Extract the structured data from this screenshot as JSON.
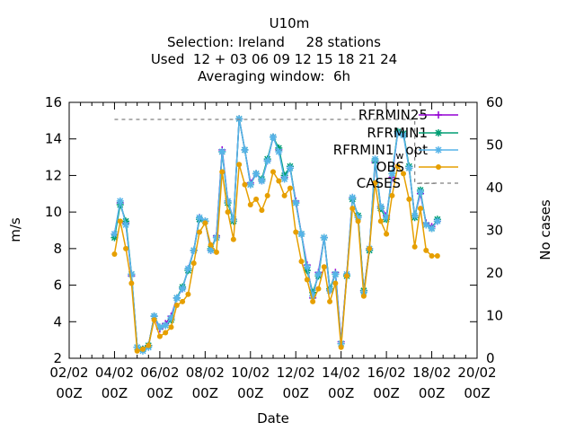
{
  "header": {
    "line1": "U10m",
    "line2": "Selection: Ireland     28 stations",
    "line3": "Used  12 + 03 06 09 12 15 18 21 24",
    "line4": "Averaging window:  6h"
  },
  "chart_data": {
    "type": "line",
    "title": "U10m",
    "xlabel": "Date",
    "ylabel": "m/s",
    "y2label": "No cases",
    "ylim": [
      2,
      16
    ],
    "y2lim": [
      0,
      60
    ],
    "yticks": [
      "2",
      "4",
      "6",
      "8",
      "10",
      "12",
      "14",
      "16"
    ],
    "y2ticks": [
      "0",
      "10",
      "20",
      "30",
      "40",
      "50",
      "60"
    ],
    "xlim_days": [
      0,
      18
    ],
    "xticks": [
      {
        "d": 0,
        "label": [
          "02/02",
          "00Z"
        ]
      },
      {
        "d": 2,
        "label": [
          "04/02",
          "00Z"
        ]
      },
      {
        "d": 4,
        "label": [
          "06/02",
          "00Z"
        ]
      },
      {
        "d": 6,
        "label": [
          "08/02",
          "00Z"
        ]
      },
      {
        "d": 8,
        "label": [
          "10/02",
          "00Z"
        ]
      },
      {
        "d": 10,
        "label": [
          "12/02",
          "00Z"
        ]
      },
      {
        "d": 12,
        "label": [
          "14/02",
          "00Z"
        ]
      },
      {
        "d": 14,
        "label": [
          "16/02",
          "00Z"
        ]
      },
      {
        "d": 16,
        "label": [
          "18/02",
          "00Z"
        ]
      },
      {
        "d": 18,
        "label": [
          "20/02",
          "00Z"
        ]
      }
    ],
    "x": [
      2.0,
      2.25,
      2.5,
      2.75,
      3.0,
      3.25,
      3.5,
      3.75,
      4.0,
      4.25,
      4.5,
      4.75,
      5.0,
      5.25,
      5.5,
      5.75,
      6.0,
      6.25,
      6.5,
      6.75,
      7.0,
      7.25,
      7.5,
      7.75,
      8.0,
      8.25,
      8.5,
      8.75,
      9.0,
      9.25,
      9.5,
      9.75,
      10.0,
      10.25,
      10.5,
      10.75,
      11.0,
      11.25,
      11.5,
      11.75,
      12.0,
      12.25,
      12.5,
      12.75,
      13.0,
      13.25,
      13.5,
      13.75,
      14.0,
      14.25,
      14.5,
      14.75,
      15.0,
      15.25,
      15.5,
      15.75,
      16.0,
      16.25
    ],
    "series": [
      {
        "name": "RFRMIN25",
        "color": "#9400d3",
        "marker": "plus",
        "values": [
          8.8,
          10.5,
          9.4,
          6.5,
          2.6,
          2.5,
          2.7,
          4.3,
          3.6,
          3.9,
          4.3,
          5.3,
          5.8,
          6.9,
          7.9,
          9.7,
          9.5,
          7.9,
          8.7,
          13.4,
          10.6,
          9.6,
          15.1,
          13.4,
          11.6,
          12.1,
          11.7,
          12.8,
          14.1,
          13.4,
          11.9,
          12.4,
          10.6,
          8.8,
          7.1,
          5.3,
          6.7,
          8.6,
          5.7,
          6.7,
          2.9,
          6.6,
          10.8,
          9.7,
          5.7,
          8.0,
          12.7,
          10.3,
          9.8,
          11.9,
          14.4,
          14.3,
          12.4,
          9.8,
          11.0,
          9.4,
          9.2,
          9.5
        ]
      },
      {
        "name": "RFRMIN1",
        "color": "#009e73",
        "marker": "star",
        "values": [
          8.6,
          10.4,
          9.5,
          6.6,
          2.6,
          2.5,
          2.7,
          4.3,
          3.7,
          3.8,
          4.1,
          5.3,
          5.9,
          6.8,
          7.9,
          9.6,
          9.5,
          8.0,
          8.6,
          13.3,
          10.5,
          9.5,
          15.1,
          13.4,
          11.5,
          12.1,
          11.8,
          12.9,
          14.1,
          13.5,
          12.0,
          12.5,
          10.5,
          8.8,
          6.8,
          5.6,
          6.5,
          8.6,
          5.8,
          6.6,
          2.8,
          6.5,
          10.7,
          9.8,
          5.7,
          7.9,
          12.8,
          10.2,
          9.6,
          12.1,
          14.4,
          14.3,
          12.5,
          9.7,
          11.2,
          9.3,
          9.1,
          9.6
        ]
      },
      {
        "name": "RFRMIN1 opt",
        "color": "#56b4e9",
        "marker": "star",
        "values": [
          8.8,
          10.6,
          9.3,
          6.6,
          2.6,
          2.4,
          2.6,
          4.3,
          3.7,
          3.8,
          4.2,
          5.3,
          5.8,
          6.9,
          7.9,
          9.7,
          9.5,
          7.9,
          8.6,
          13.3,
          10.6,
          9.6,
          15.1,
          13.4,
          11.5,
          12.1,
          11.7,
          12.8,
          14.1,
          13.3,
          11.8,
          12.4,
          10.5,
          8.8,
          7.0,
          5.4,
          6.6,
          8.6,
          5.7,
          6.6,
          2.8,
          6.6,
          10.8,
          9.7,
          5.6,
          8.0,
          12.9,
          10.3,
          9.7,
          12.1,
          14.3,
          14.2,
          12.4,
          9.8,
          11.1,
          9.3,
          9.1,
          9.5
        ]
      },
      {
        "name": "OBS",
        "color": "#e69f00",
        "marker": "circle",
        "values": [
          7.7,
          9.5,
          8.0,
          6.1,
          2.4,
          2.5,
          2.7,
          4.1,
          3.2,
          3.4,
          3.7,
          4.9,
          5.1,
          5.5,
          7.2,
          8.9,
          9.4,
          8.2,
          7.8,
          12.2,
          10.0,
          8.5,
          12.6,
          11.5,
          10.4,
          10.7,
          10.1,
          10.9,
          12.2,
          11.7,
          10.9,
          11.3,
          8.9,
          7.3,
          6.3,
          5.1,
          5.8,
          7.0,
          5.1,
          6.1,
          2.6,
          6.5,
          10.2,
          9.5,
          5.4,
          8.0,
          11.6,
          9.5,
          8.8,
          10.9,
          12.5,
          12.1,
          10.7,
          8.1,
          10.2,
          7.9,
          7.6,
          7.6
        ]
      },
      {
        "name": "CASES",
        "color": "#808080",
        "dashed": true,
        "values": [
          56,
          56,
          56,
          56,
          56,
          56,
          56,
          56,
          56,
          56,
          56,
          56,
          56,
          56,
          56,
          56,
          56,
          56,
          56,
          56,
          56,
          56,
          56,
          56,
          56,
          56,
          56,
          56,
          56,
          56,
          56,
          56,
          56,
          56,
          56,
          56,
          56,
          56,
          56,
          56,
          56,
          56,
          56,
          56,
          56,
          56,
          56,
          56,
          56,
          56,
          56,
          56,
          56,
          41,
          41,
          41,
          41,
          41
        ]
      }
    ],
    "legend": {
      "position": "top-right",
      "label_w": "w",
      "label_opt": "opt"
    }
  }
}
